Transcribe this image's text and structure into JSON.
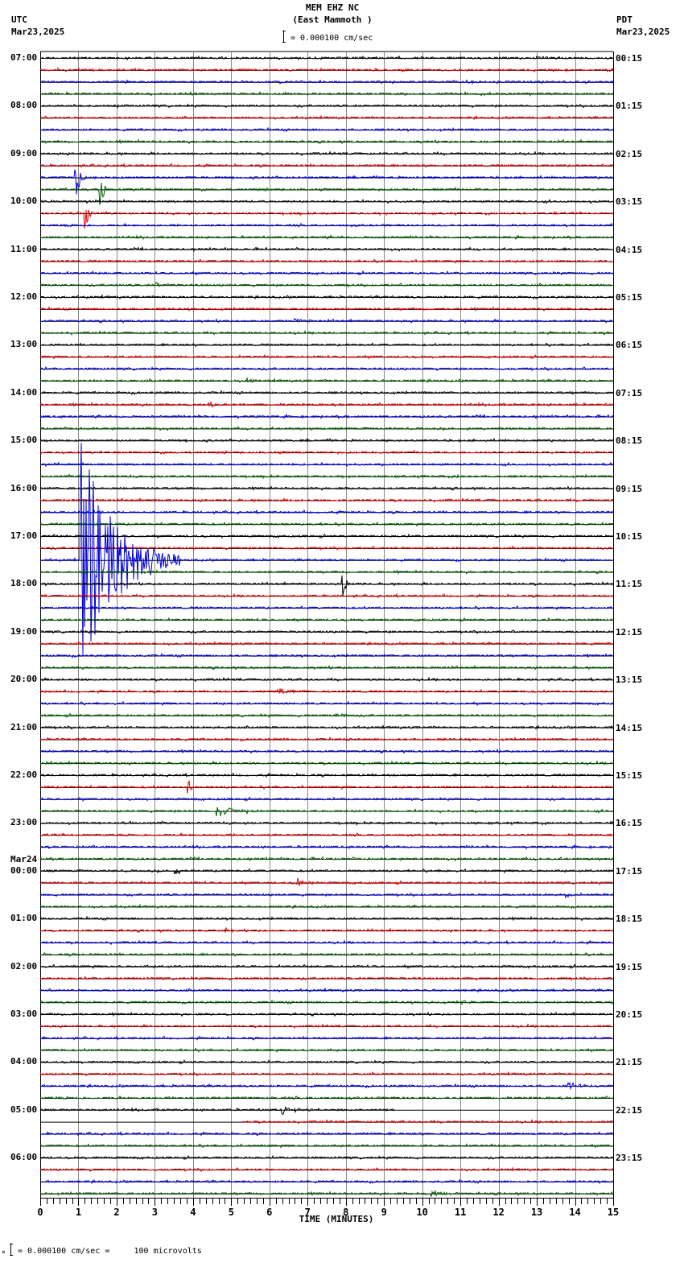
{
  "header": {
    "station": "MEM EHZ NC",
    "location": "(East Mammoth )",
    "scale_text": "= 0.000100 cm/sec",
    "left_tz": "UTC",
    "left_date": "Mar23,2025",
    "right_tz": "PDT",
    "right_date": "Mar23,2025"
  },
  "footer": {
    "scale_text": "= 0.000100 cm/sec =     100 microvolts",
    "prefix_mark": "×"
  },
  "colors": {
    "trace_cycle": [
      "#000000",
      "#e00000",
      "#0000e0",
      "#006000"
    ],
    "grid": "#888888",
    "axis": "#000000"
  },
  "chart_data": {
    "type": "line",
    "title": "MEM EHZ NC (East Mammoth )",
    "subtitle": "= 0.000100 cm/sec",
    "xlabel": "TIME (MINUTES)",
    "ylabel": "",
    "xlim": [
      0,
      15
    ],
    "x_ticks": [
      "0",
      "1",
      "2",
      "3",
      "4",
      "5",
      "6",
      "7",
      "8",
      "9",
      "10",
      "11",
      "12",
      "13",
      "14",
      "15"
    ],
    "minor_ticks_per_minute": 6,
    "grid": true,
    "traces_per_hour": 4,
    "minutes_per_trace": 15,
    "left_labels": [
      {
        "row": 0,
        "text": "07:00"
      },
      {
        "row": 4,
        "text": "08:00"
      },
      {
        "row": 8,
        "text": "09:00"
      },
      {
        "row": 12,
        "text": "10:00"
      },
      {
        "row": 16,
        "text": "11:00"
      },
      {
        "row": 20,
        "text": "12:00"
      },
      {
        "row": 24,
        "text": "13:00"
      },
      {
        "row": 28,
        "text": "14:00"
      },
      {
        "row": 32,
        "text": "15:00"
      },
      {
        "row": 36,
        "text": "16:00"
      },
      {
        "row": 40,
        "text": "17:00"
      },
      {
        "row": 44,
        "text": "18:00"
      },
      {
        "row": 48,
        "text": "19:00"
      },
      {
        "row": 52,
        "text": "20:00"
      },
      {
        "row": 56,
        "text": "21:00"
      },
      {
        "row": 60,
        "text": "22:00"
      },
      {
        "row": 64,
        "text": "23:00"
      },
      {
        "row": 68,
        "text": "00:00",
        "date": "Mar24"
      },
      {
        "row": 72,
        "text": "01:00"
      },
      {
        "row": 76,
        "text": "02:00"
      },
      {
        "row": 80,
        "text": "03:00"
      },
      {
        "row": 84,
        "text": "04:00"
      },
      {
        "row": 88,
        "text": "05:00"
      },
      {
        "row": 92,
        "text": "06:00"
      }
    ],
    "right_labels": [
      {
        "row": 0,
        "text": "00:15"
      },
      {
        "row": 4,
        "text": "01:15"
      },
      {
        "row": 8,
        "text": "02:15"
      },
      {
        "row": 12,
        "text": "03:15"
      },
      {
        "row": 16,
        "text": "04:15"
      },
      {
        "row": 20,
        "text": "05:15"
      },
      {
        "row": 24,
        "text": "06:15"
      },
      {
        "row": 28,
        "text": "07:15"
      },
      {
        "row": 32,
        "text": "08:15"
      },
      {
        "row": 36,
        "text": "09:15"
      },
      {
        "row": 40,
        "text": "10:15"
      },
      {
        "row": 44,
        "text": "11:15"
      },
      {
        "row": 48,
        "text": "12:15"
      },
      {
        "row": 52,
        "text": "13:15"
      },
      {
        "row": 56,
        "text": "14:15"
      },
      {
        "row": 60,
        "text": "15:15"
      },
      {
        "row": 64,
        "text": "16:15"
      },
      {
        "row": 68,
        "text": "17:15"
      },
      {
        "row": 72,
        "text": "18:15"
      },
      {
        "row": 76,
        "text": "19:15"
      },
      {
        "row": 80,
        "text": "20:15"
      },
      {
        "row": 84,
        "text": "21:15"
      },
      {
        "row": 88,
        "text": "22:15"
      },
      {
        "row": 92,
        "text": "23:15"
      }
    ],
    "rows": 96,
    "events": [
      {
        "row": 10,
        "minute": 0.9,
        "amp": 55,
        "dur": 0.6,
        "type": "spike",
        "note": "large green transient"
      },
      {
        "row": 11,
        "minute": 1.5,
        "amp": 60,
        "dur": 0.3,
        "type": "spike"
      },
      {
        "row": 13,
        "minute": 1.15,
        "amp": 30,
        "dur": 0.2,
        "type": "spike"
      },
      {
        "row": 16,
        "minute": 12.9,
        "amp": 5,
        "dur": 0.1,
        "type": "burst"
      },
      {
        "row": 19,
        "minute": 3.0,
        "amp": 4,
        "dur": 0.6,
        "type": "burst"
      },
      {
        "row": 22,
        "minute": 6.6,
        "amp": 4,
        "dur": 0.6,
        "type": "burst"
      },
      {
        "row": 27,
        "minute": 5.4,
        "amp": 4,
        "dur": 0.6,
        "type": "burst"
      },
      {
        "row": 29,
        "minute": 4.4,
        "amp": 4,
        "dur": 0.6,
        "type": "burst"
      },
      {
        "row": 35,
        "minute": 10.9,
        "amp": 5,
        "dur": 0.2,
        "type": "burst"
      },
      {
        "row": 42,
        "minute": 1.05,
        "amp": 150,
        "dur": 2.6,
        "type": "quake",
        "note": "large teleseism/local event, blue trace"
      },
      {
        "row": 44,
        "minute": 7.85,
        "amp": 40,
        "dur": 0.25,
        "type": "quake",
        "note": "black trace event"
      },
      {
        "row": 53,
        "minute": 6.2,
        "amp": 6,
        "dur": 0.8,
        "type": "burst"
      },
      {
        "row": 55,
        "minute": 7.7,
        "amp": 4,
        "dur": 0.6,
        "type": "burst"
      },
      {
        "row": 61,
        "minute": 3.85,
        "amp": 18,
        "dur": 0.2,
        "type": "quake"
      },
      {
        "row": 63,
        "minute": 4.6,
        "amp": 9,
        "dur": 1.2,
        "type": "quake"
      },
      {
        "row": 68,
        "minute": 3.5,
        "amp": 5,
        "dur": 0.5,
        "type": "burst"
      },
      {
        "row": 69,
        "minute": 6.7,
        "amp": 6,
        "dur": 0.6,
        "type": "burst"
      },
      {
        "row": 70,
        "minute": 13.7,
        "amp": 4,
        "dur": 0.6,
        "type": "burst"
      },
      {
        "row": 73,
        "minute": 4.8,
        "amp": 5,
        "dur": 0.5,
        "type": "burst"
      },
      {
        "row": 79,
        "minute": 11.0,
        "amp": 4,
        "dur": 0.6,
        "type": "burst"
      },
      {
        "row": 86,
        "minute": 13.8,
        "amp": 5,
        "dur": 1.0,
        "type": "burst"
      },
      {
        "row": 88,
        "minute": 6.3,
        "amp": 6,
        "dur": 1.0,
        "type": "burst"
      },
      {
        "row": 95,
        "minute": 10.2,
        "amp": 6,
        "dur": 0.8,
        "type": "burst"
      }
    ],
    "gaps": [
      {
        "row": 88,
        "from_minute": 9.3,
        "to_minute": 15
      },
      {
        "row": 89,
        "from_minute": 0,
        "to_minute": 5.3
      }
    ]
  }
}
